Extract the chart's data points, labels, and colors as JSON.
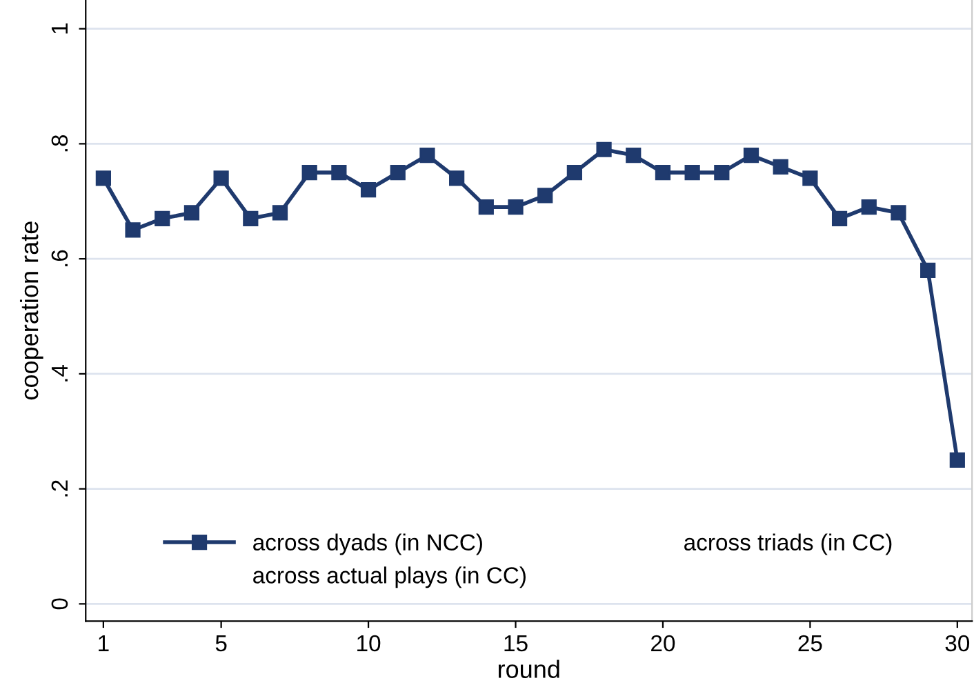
{
  "chart_data": {
    "type": "line",
    "xlabel": "round",
    "ylabel": "cooperation rate",
    "x": [
      1,
      2,
      3,
      4,
      5,
      6,
      7,
      8,
      9,
      10,
      11,
      12,
      13,
      14,
      15,
      16,
      17,
      18,
      19,
      20,
      21,
      22,
      23,
      24,
      25,
      26,
      27,
      28,
      29,
      30
    ],
    "series": [
      {
        "name": "across dyads (in NCC)",
        "color": "#1f3a6e",
        "values": [
          0.74,
          0.65,
          0.67,
          0.68,
          0.74,
          0.67,
          0.68,
          0.75,
          0.75,
          0.72,
          0.75,
          0.78,
          0.74,
          0.69,
          0.69,
          0.71,
          0.75,
          0.79,
          0.78,
          0.75,
          0.75,
          0.75,
          0.78,
          0.76,
          0.74,
          0.67,
          0.69,
          0.68,
          0.58,
          0.25
        ]
      },
      {
        "name": "across triads (in CC)",
        "values": [
          null,
          null,
          null,
          null,
          null,
          null,
          null,
          null,
          null,
          null,
          null,
          null,
          null,
          null,
          null,
          null,
          null,
          null,
          null,
          null,
          null,
          null,
          null,
          null,
          null,
          null,
          null,
          null,
          null,
          null
        ]
      },
      {
        "name": "across actual plays (in CC)",
        "values": [
          null,
          null,
          null,
          null,
          null,
          null,
          null,
          null,
          null,
          null,
          null,
          null,
          null,
          null,
          null,
          null,
          null,
          null,
          null,
          null,
          null,
          null,
          null,
          null,
          null,
          null,
          null,
          null,
          null,
          null
        ]
      }
    ],
    "xlim": [
      0.4,
      30.5
    ],
    "xticks": [
      1,
      5,
      10,
      15,
      20,
      25,
      30
    ],
    "ylim": [
      -0.03,
      1.05
    ],
    "yticks": [
      {
        "value": 0,
        "label": "0"
      },
      {
        "value": 0.2,
        "label": ".2"
      },
      {
        "value": 0.4,
        "label": ".4"
      },
      {
        "value": 0.6,
        "label": ".6"
      },
      {
        "value": 0.8,
        "label": ".8"
      },
      {
        "value": 1,
        "label": "1"
      }
    ],
    "grid": "y",
    "legend": "bottom",
    "marker": "square",
    "line_style": "solid"
  }
}
